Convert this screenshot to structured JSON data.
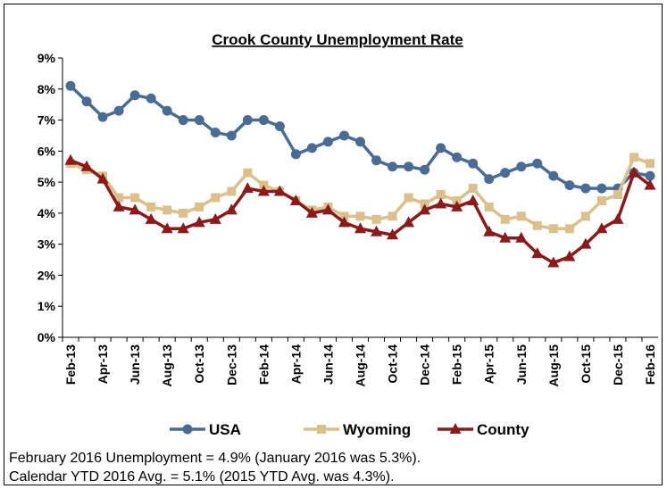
{
  "chart_data": {
    "type": "line",
    "title": "Crook County Unemployment Rate",
    "categories": [
      "Feb-13",
      null,
      "Apr-13",
      null,
      "Jun-13",
      null,
      "Aug-13",
      null,
      "Oct-13",
      null,
      "Dec-13",
      null,
      "Feb-14",
      null,
      "Apr-14",
      null,
      "Jun-14",
      null,
      "Aug-14",
      null,
      "Oct-14",
      null,
      "Dec-14",
      null,
      "Feb-15",
      null,
      "Apr-15",
      null,
      "Jun-15",
      null,
      "Aug-15",
      null,
      "Oct-15",
      null,
      "Dec-15",
      null,
      "Feb-16"
    ],
    "series": [
      {
        "name": "USA",
        "color": "#4a6b94",
        "marker": "circle",
        "values": [
          8.1,
          7.6,
          7.1,
          7.3,
          7.8,
          7.7,
          7.3,
          7.0,
          7.0,
          6.6,
          6.5,
          7.0,
          7.0,
          6.8,
          5.9,
          6.1,
          6.3,
          6.5,
          6.3,
          5.7,
          5.5,
          5.5,
          5.4,
          6.1,
          5.8,
          5.6,
          5.1,
          5.3,
          5.5,
          5.6,
          5.2,
          4.9,
          4.8,
          4.8,
          4.8,
          5.3,
          5.2
        ]
      },
      {
        "name": "Wyoming",
        "color": "#dcc08c",
        "marker": "square",
        "values": [
          5.6,
          5.4,
          5.2,
          4.5,
          4.5,
          4.2,
          4.1,
          4.0,
          4.2,
          4.5,
          4.7,
          5.3,
          4.9,
          4.7,
          4.4,
          4.1,
          4.2,
          3.9,
          3.9,
          3.8,
          3.9,
          4.5,
          4.3,
          4.6,
          4.4,
          4.8,
          4.2,
          3.8,
          3.9,
          3.6,
          3.5,
          3.5,
          3.9,
          4.4,
          4.6,
          5.8,
          5.6
        ]
      },
      {
        "name": "County",
        "color": "#8b1a1a",
        "marker": "triangle",
        "values": [
          5.7,
          5.5,
          5.1,
          4.2,
          4.1,
          3.8,
          3.5,
          3.5,
          3.7,
          3.8,
          4.1,
          4.8,
          4.7,
          4.7,
          4.4,
          4.0,
          4.1,
          3.7,
          3.5,
          3.4,
          3.3,
          3.7,
          4.1,
          4.3,
          4.2,
          4.4,
          3.4,
          3.2,
          3.2,
          2.7,
          2.4,
          2.6,
          3.0,
          3.5,
          3.8,
          5.3,
          4.9
        ]
      }
    ],
    "ylim": [
      0,
      9
    ],
    "yticks": [
      {
        "value": 0,
        "label": "0%"
      },
      {
        "value": 1,
        "label": "1%"
      },
      {
        "value": 2,
        "label": "2%"
      },
      {
        "value": 3,
        "label": "3%"
      },
      {
        "value": 4,
        "label": "4%"
      },
      {
        "value": 5,
        "label": "5%"
      },
      {
        "value": 6,
        "label": "6%"
      },
      {
        "value": 7,
        "label": "7%"
      },
      {
        "value": 8,
        "label": "8%"
      },
      {
        "value": 9,
        "label": "9%"
      }
    ],
    "grid": false,
    "legend": "bottom",
    "notes": [
      "February 2016 Unemployment = 4.9% (January 2016 was 5.3%).",
      "Calendar YTD 2016 Avg. = 5.1% (2015 YTD Avg. was 4.3%)."
    ]
  }
}
